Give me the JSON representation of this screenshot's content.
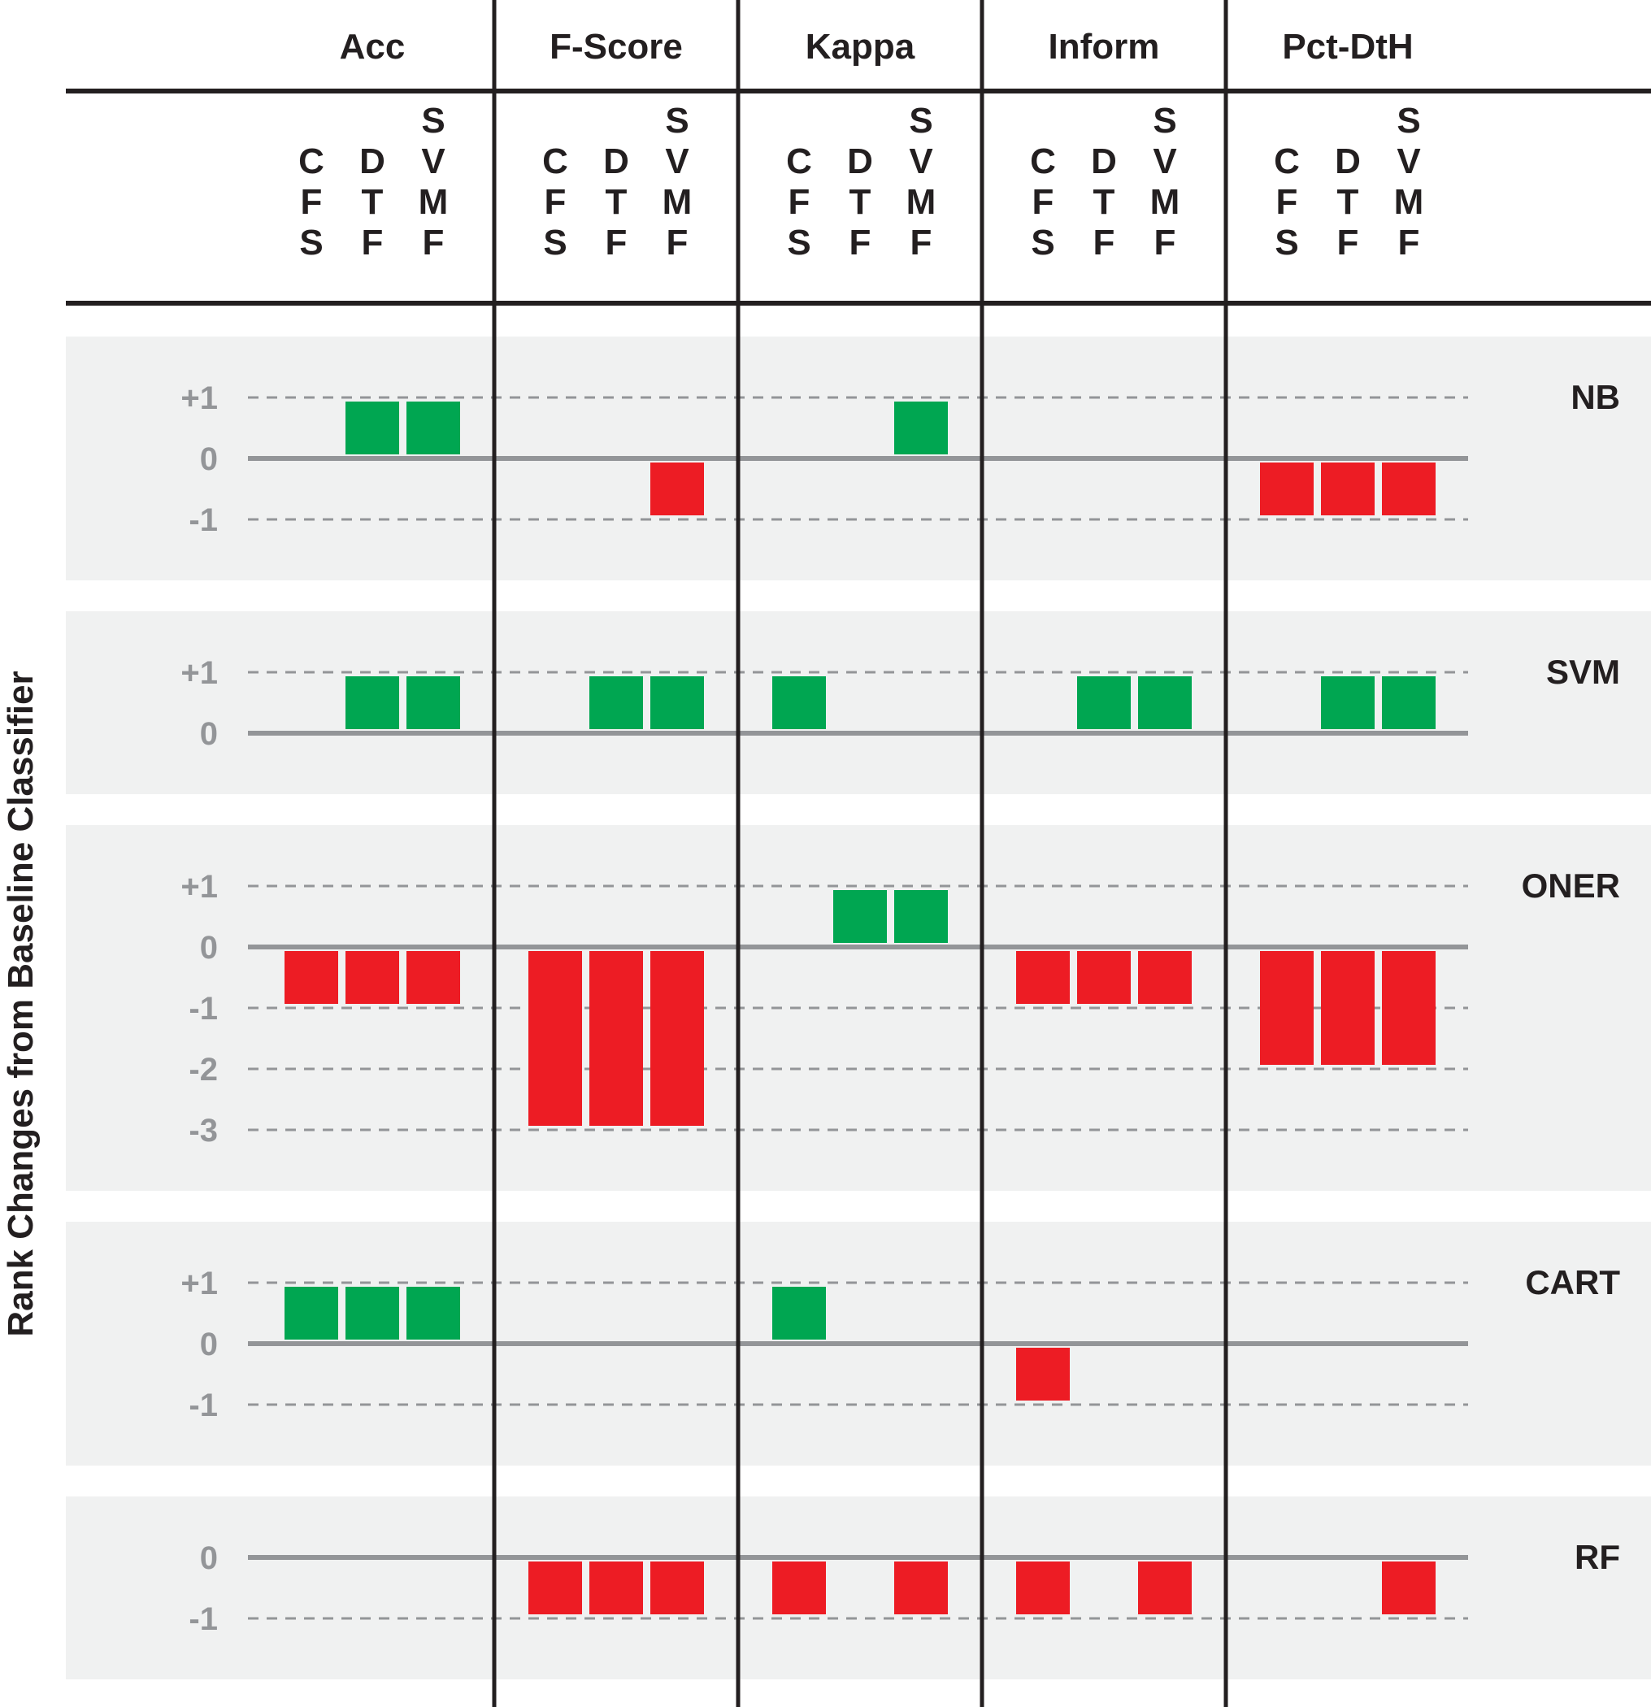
{
  "chart_data": {
    "type": "bar",
    "ylabel": "Rank Changes from Baseline Classifier",
    "metrics": [
      "Acc",
      "F-Score",
      "Kappa",
      "Inform",
      "Pct-DtH"
    ],
    "feature_selectors": [
      {
        "id": "CFS",
        "letters": [
          "C",
          "F",
          "S"
        ]
      },
      {
        "id": "DTF",
        "letters": [
          "D",
          "T",
          "F"
        ]
      },
      {
        "id": "SVMF",
        "letters": [
          "S",
          "V",
          "M",
          "F"
        ]
      }
    ],
    "colors": {
      "positive": "#00a651",
      "negative": "#ed1c24",
      "zero_line": "#939598",
      "grid": "#939598",
      "panel_bg": "#f0f1f1",
      "divider": "#231f20"
    },
    "classifiers": [
      {
        "name": "NB",
        "ylim": [
          -1,
          1
        ],
        "ticks": [
          "+1",
          "0",
          "-1"
        ],
        "values": [
          [
            0,
            1,
            1
          ],
          [
            0,
            0,
            -1
          ],
          [
            0,
            0,
            1
          ],
          [
            0,
            0,
            0
          ],
          [
            -1,
            -1,
            -1
          ]
        ]
      },
      {
        "name": "SVM",
        "ylim": [
          0,
          1
        ],
        "ticks": [
          "+1",
          "0"
        ],
        "values": [
          [
            0,
            1,
            1
          ],
          [
            0,
            1,
            1
          ],
          [
            1,
            0,
            0
          ],
          [
            0,
            1,
            1
          ],
          [
            0,
            1,
            1
          ]
        ]
      },
      {
        "name": "ONER",
        "ylim": [
          -3,
          1
        ],
        "ticks": [
          "+1",
          "0",
          "-1",
          "-2",
          "-3"
        ],
        "values": [
          [
            -1,
            -1,
            -1
          ],
          [
            -3,
            -3,
            -3
          ],
          [
            0,
            1,
            1
          ],
          [
            -1,
            -1,
            -1
          ],
          [
            -2,
            -2,
            -2
          ]
        ]
      },
      {
        "name": "CART",
        "ylim": [
          -1,
          1
        ],
        "ticks": [
          "+1",
          "0",
          "-1"
        ],
        "values": [
          [
            1,
            1,
            1
          ],
          [
            0,
            0,
            0
          ],
          [
            1,
            0,
            0
          ],
          [
            -1,
            0,
            0
          ],
          [
            0,
            0,
            0
          ]
        ]
      },
      {
        "name": "RF",
        "ylim": [
          -1,
          0
        ],
        "ticks": [
          "0",
          "-1"
        ],
        "values": [
          [
            0,
            0,
            0
          ],
          [
            -1,
            -1,
            -1
          ],
          [
            -1,
            0,
            -1
          ],
          [
            -1,
            0,
            -1
          ],
          [
            0,
            0,
            -1
          ]
        ]
      }
    ]
  }
}
